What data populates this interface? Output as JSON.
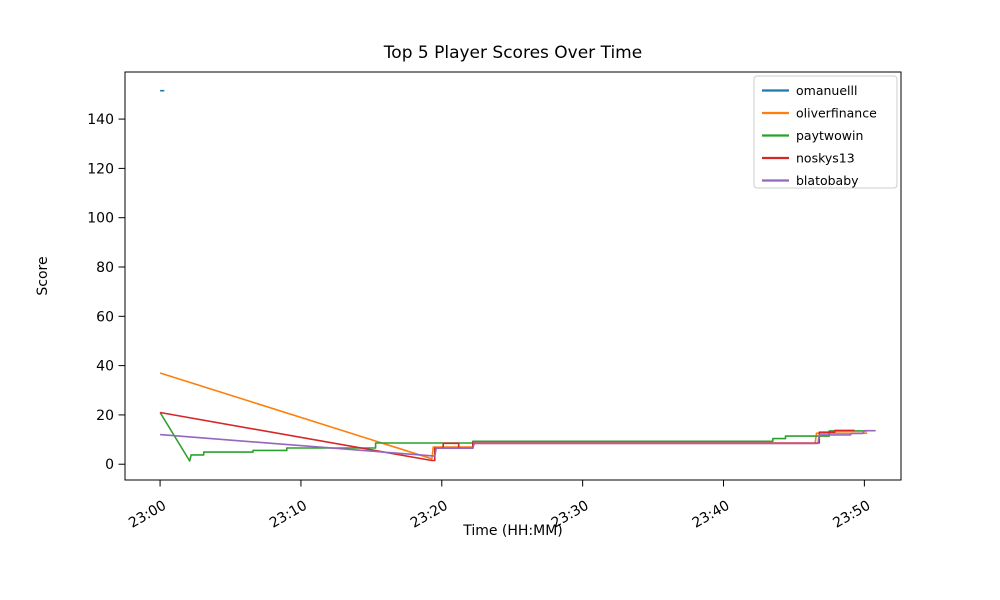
{
  "figure": {
    "background": "#ffffff"
  },
  "chart_data": {
    "type": "line",
    "title": "Top 5 Player Scores Over Time",
    "xlabel": "Time (HH:MM)",
    "ylabel": "Score",
    "x_unit_note": "x values are minutes after 23:00",
    "xlim": [
      -2.49,
      52.6
    ],
    "ylim": [
      -6.4,
      159.1
    ],
    "grid": false,
    "legend_position": "upper right",
    "x_ticks": [
      {
        "minute": 0,
        "label": "23:00"
      },
      {
        "minute": 10,
        "label": "23:10"
      },
      {
        "minute": 20,
        "label": "23:20"
      },
      {
        "minute": 30,
        "label": "23:30"
      },
      {
        "minute": 40,
        "label": "23:40"
      },
      {
        "minute": 50,
        "label": "23:50"
      }
    ],
    "y_ticks": [
      0,
      20,
      40,
      60,
      80,
      100,
      120,
      140
    ],
    "series": [
      {
        "name": "omanuelll",
        "color": "#1f77b4",
        "points": [
          [
            0,
            151.5
          ],
          [
            0.3,
            151.5
          ]
        ]
      },
      {
        "name": "oliverfinance",
        "color": "#ff7f0e",
        "points": [
          [
            0,
            37
          ],
          [
            19.3,
            2.2
          ],
          [
            19.4,
            7
          ],
          [
            22.2,
            7
          ],
          [
            22.3,
            8.5
          ],
          [
            46.5,
            8.5
          ],
          [
            46.6,
            12.6
          ],
          [
            50.2,
            12.6
          ]
        ]
      },
      {
        "name": "paytwowin",
        "color": "#2ca02c",
        "points": [
          [
            0,
            21
          ],
          [
            2.1,
            1.3
          ],
          [
            2.2,
            3.8
          ],
          [
            3.1,
            3.8
          ],
          [
            3.1,
            4.9
          ],
          [
            6.6,
            4.9
          ],
          [
            6.6,
            5.6
          ],
          [
            9,
            5.6
          ],
          [
            9,
            6.6
          ],
          [
            15.3,
            6.6
          ],
          [
            15.3,
            8.6
          ],
          [
            22.2,
            8.6
          ],
          [
            22.2,
            9.3
          ],
          [
            43.5,
            9.3
          ],
          [
            43.5,
            10.4
          ],
          [
            44.4,
            10.4
          ],
          [
            44.4,
            11.4
          ],
          [
            47.5,
            11.4
          ],
          [
            47.5,
            13.5
          ],
          [
            50.2,
            13.5
          ]
        ]
      },
      {
        "name": "noskys13",
        "color": "#d62728",
        "points": [
          [
            0,
            21
          ],
          [
            19.3,
            1.5
          ],
          [
            19.5,
            1.5
          ],
          [
            19.5,
            6.5
          ],
          [
            20.1,
            6.5
          ],
          [
            20.1,
            8.5
          ],
          [
            21.2,
            8.5
          ],
          [
            21.2,
            6.5
          ],
          [
            22.2,
            6.5
          ],
          [
            22.2,
            8.6
          ],
          [
            46.8,
            8.6
          ],
          [
            46.8,
            13
          ],
          [
            47.9,
            13
          ],
          [
            47.9,
            13.7
          ],
          [
            49.3,
            13.7
          ]
        ]
      },
      {
        "name": "blatobaby",
        "color": "#9467bd",
        "points": [
          [
            0,
            12
          ],
          [
            19.5,
            3.3
          ],
          [
            19.6,
            6.5
          ],
          [
            22.2,
            6.5
          ],
          [
            22.3,
            8.4
          ],
          [
            46.7,
            8.4
          ],
          [
            46.8,
            11.9
          ],
          [
            49,
            11.9
          ],
          [
            49.1,
            12.5
          ],
          [
            49.9,
            12.5
          ],
          [
            50,
            13.6
          ],
          [
            50.8,
            13.6
          ]
        ]
      }
    ]
  }
}
